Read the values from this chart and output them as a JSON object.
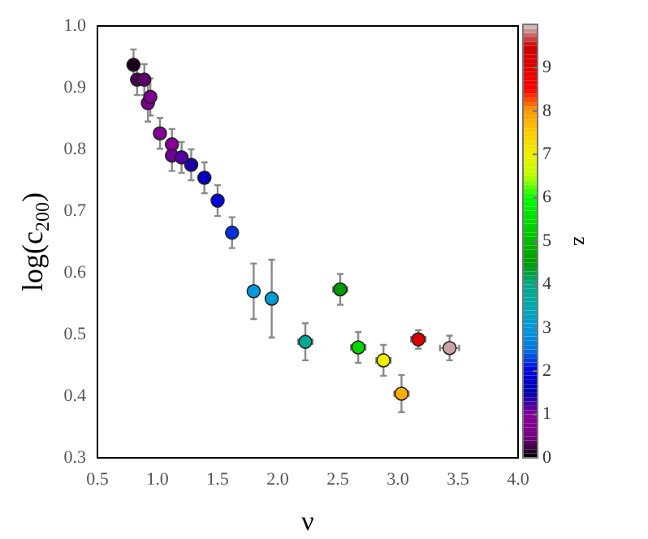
{
  "chart_data": {
    "type": "scatter",
    "xlabel": "ν",
    "ylabel": "log(c$_{200}$)",
    "clabel": "z",
    "x": [
      0.8,
      0.83,
      0.89,
      0.92,
      0.94,
      1.02,
      1.12,
      1.12,
      1.2,
      1.28,
      1.39,
      1.5,
      1.62,
      1.8,
      1.95,
      2.23,
      2.52,
      2.67,
      2.88,
      3.03,
      3.17,
      3.43
    ],
    "values": [
      0.937,
      0.913,
      0.913,
      0.875,
      0.885,
      0.826,
      0.808,
      0.79,
      0.787,
      0.775,
      0.754,
      0.717,
      0.665,
      0.57,
      0.558,
      0.488,
      0.573,
      0.479,
      0.458,
      0.404,
      0.492,
      0.478
    ],
    "errors": [
      0.025,
      0.025,
      0.025,
      0.03,
      0.03,
      0.025,
      0.025,
      0.025,
      0.025,
      0.025,
      0.025,
      0.025,
      0.025,
      0.045,
      0.063,
      0.03,
      0.025,
      0.025,
      0.025,
      0.03,
      0.015,
      0.02
    ],
    "xerrors": [
      null,
      null,
      null,
      null,
      null,
      null,
      null,
      null,
      null,
      null,
      null,
      null,
      null,
      null,
      null,
      0.06,
      0.06,
      0.06,
      0.06,
      0.06,
      0.06,
      0.08
    ],
    "cvalues": [
      0.1,
      0.3,
      0.4,
      0.6,
      0.7,
      0.9,
      1.0,
      1.1,
      1.2,
      1.4,
      1.7,
      2.0,
      2.2,
      3.0,
      3.1,
      3.8,
      4.5,
      5.4,
      7.0,
      7.8,
      9.0,
      9.9
    ],
    "clim": [
      0,
      10
    ],
    "cticks": [
      0,
      1,
      2,
      3,
      4,
      5,
      6,
      7,
      8,
      9
    ],
    "xlim": [
      0.5,
      4.0
    ],
    "xticks": [
      0.5,
      {
        "value": 1,
        "label": "1.0"
      },
      1.5,
      {
        "value": 2,
        "label": "2.0"
      },
      2.5,
      {
        "value": 3,
        "label": "3.0"
      },
      3.5,
      {
        "value": 4,
        "label": "4.0"
      }
    ],
    "ylim": [
      0.3,
      1.0
    ],
    "yticks": [
      0.3,
      0.4,
      0.5,
      0.6,
      0.7,
      0.8,
      0.9,
      {
        "value": 1,
        "label": "1.0"
      }
    ],
    "marker": "circle",
    "grid": false,
    "legend": false
  }
}
